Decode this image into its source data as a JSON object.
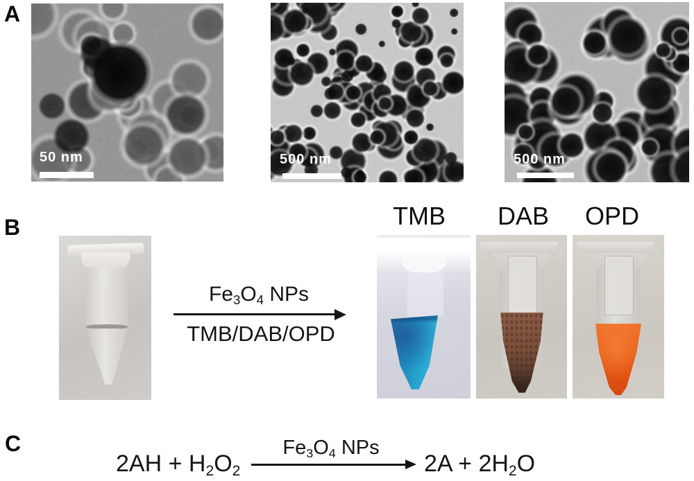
{
  "panels": {
    "a": {
      "label": "A",
      "tems": [
        {
          "scale_text": "50 nm"
        },
        {
          "scale_text": "500 nm"
        },
        {
          "scale_text": "500 nm"
        }
      ]
    },
    "b": {
      "label": "B",
      "catalyst": {
        "pre": "Fe",
        "s1": "3",
        "mid": "O",
        "s2": "4",
        "post": " NPs"
      },
      "substrates": "TMB/DAB/OPD",
      "tubes": [
        {
          "label": "TMB",
          "liquid_color": "#2095c5"
        },
        {
          "label": "DAB",
          "liquid_color": "#7b4f3b"
        },
        {
          "label": "OPD",
          "liquid_color": "#e85a16"
        }
      ]
    },
    "c": {
      "label": "C",
      "lhs": {
        "p1": "2AH + H",
        "s1": "2",
        "p2": "O",
        "s2": "2"
      },
      "catalyst": {
        "pre": "Fe",
        "s1": "3",
        "mid": "O",
        "s2": "4",
        "post": " NPs"
      },
      "rhs": {
        "p1": "2A + 2H",
        "s1": "2",
        "p2": "O"
      }
    }
  },
  "colors": {
    "tmb_blue": "#2095c5",
    "dab_brown": "#7b4f3b",
    "opd_orange": "#e85a16",
    "scalebar_white": "#ffffff"
  }
}
